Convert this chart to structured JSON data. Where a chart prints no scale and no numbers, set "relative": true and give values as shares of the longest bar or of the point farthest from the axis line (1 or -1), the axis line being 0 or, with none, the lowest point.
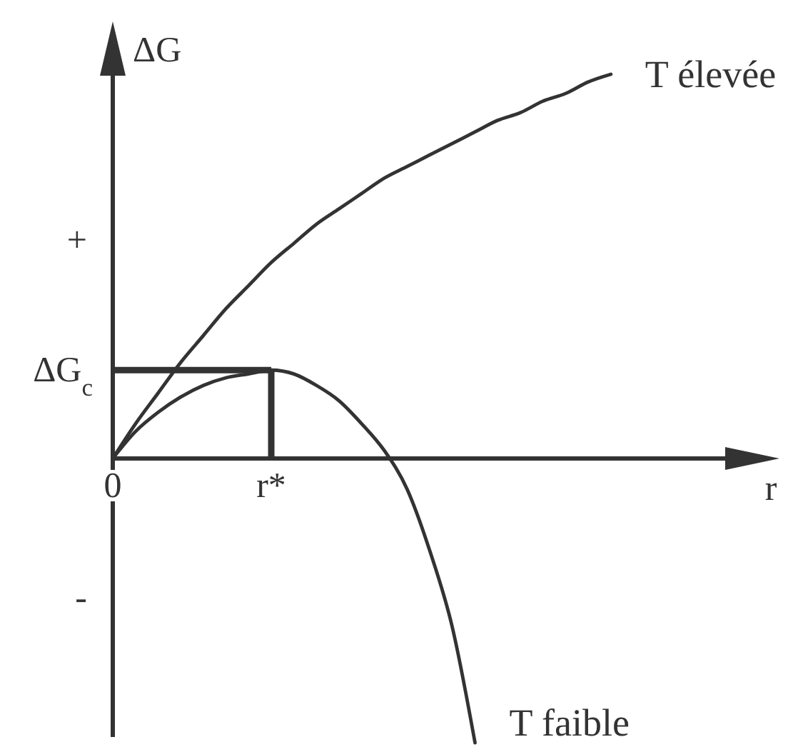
{
  "chart_data": {
    "type": "line",
    "relative": true,
    "xlabel": "r",
    "ylabel": "ΔG",
    "categories": [
      "0",
      null,
      null,
      null,
      null,
      null,
      null,
      "r*",
      null,
      null,
      null,
      null,
      null,
      null,
      null,
      null,
      null,
      null,
      null,
      null,
      null,
      null,
      null
    ],
    "series": [
      {
        "name": "T élevée",
        "color": "#333333",
        "values": [
          0,
          0.09,
          0.17,
          0.25,
          0.32,
          0.39,
          0.45,
          0.51,
          0.56,
          0.61,
          0.65,
          0.69,
          0.73,
          0.76,
          0.79,
          0.82,
          0.85,
          0.88,
          0.9,
          0.93,
          0.95,
          0.98,
          1
        ]
      },
      {
        "name": "T faible",
        "color": "#333333",
        "values": [
          0,
          0.07,
          0.12,
          0.16,
          0.19,
          0.21,
          0.22,
          0.23,
          0.22,
          0.19,
          0.15,
          0.09,
          0.02,
          -0.08,
          -0.24,
          -0.44,
          -0.74,
          null,
          null,
          null,
          null,
          null,
          null
        ]
      }
    ],
    "ref_lines": [
      {
        "axis": "y",
        "value": 0.23,
        "label": "ΔG$_{c}$",
        "color": "#333333"
      },
      {
        "axis": "x",
        "value": "r*",
        "color": "#333333"
      }
    ],
    "annotations": [
      "+",
      "-"
    ]
  }
}
